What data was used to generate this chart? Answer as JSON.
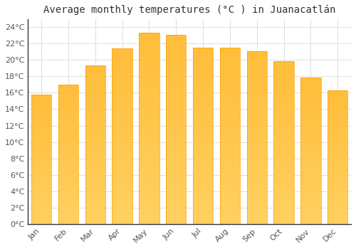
{
  "title": "Average monthly temperatures (°C ) in Juanacatlán",
  "months": [
    "Jan",
    "Feb",
    "Mar",
    "Apr",
    "May",
    "Jun",
    "Jul",
    "Aug",
    "Sep",
    "Oct",
    "Nov",
    "Dec"
  ],
  "values": [
    15.8,
    17.0,
    19.3,
    21.4,
    23.3,
    23.1,
    21.5,
    21.5,
    21.1,
    19.9,
    17.9,
    16.3
  ],
  "bar_color_light": "#FFD060",
  "bar_color_dark": "#FFA000",
  "background_color": "#FFFFFF",
  "grid_color": "#DDDDDD",
  "text_color": "#555555",
  "ylim": [
    0,
    25
  ],
  "yticks": [
    0,
    2,
    4,
    6,
    8,
    10,
    12,
    14,
    16,
    18,
    20,
    22,
    24
  ],
  "title_fontsize": 10,
  "tick_fontsize": 8,
  "bar_width": 0.75
}
